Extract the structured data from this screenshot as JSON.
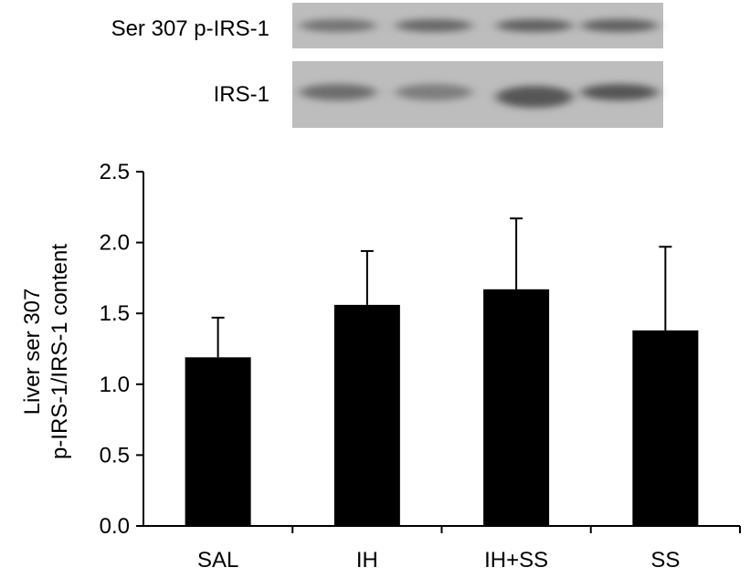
{
  "blot": {
    "rows": [
      {
        "label": "Ser 307 p-IRS-1",
        "bands": [
          0.55,
          0.65,
          0.72,
          0.72
        ]
      },
      {
        "label": "IRS-1",
        "bands": [
          0.6,
          0.45,
          0.8,
          0.82
        ]
      }
    ]
  },
  "chart_data": {
    "type": "bar",
    "categories": [
      "SAL",
      "IH",
      "IH+SS",
      "SS"
    ],
    "values": [
      1.19,
      1.56,
      1.67,
      1.38
    ],
    "error": [
      0.28,
      0.38,
      0.5,
      0.59
    ],
    "ylabel": [
      "Liver ser 307",
      "p-IRS-1/IRS-1 content"
    ],
    "ylim": [
      0,
      2.5
    ],
    "yticks": [
      "0.0",
      "0.5",
      "1.0",
      "1.5",
      "2.0",
      "2.5"
    ],
    "grid": false,
    "colors": {
      "bar": "#000000",
      "axis": "#000000"
    }
  }
}
